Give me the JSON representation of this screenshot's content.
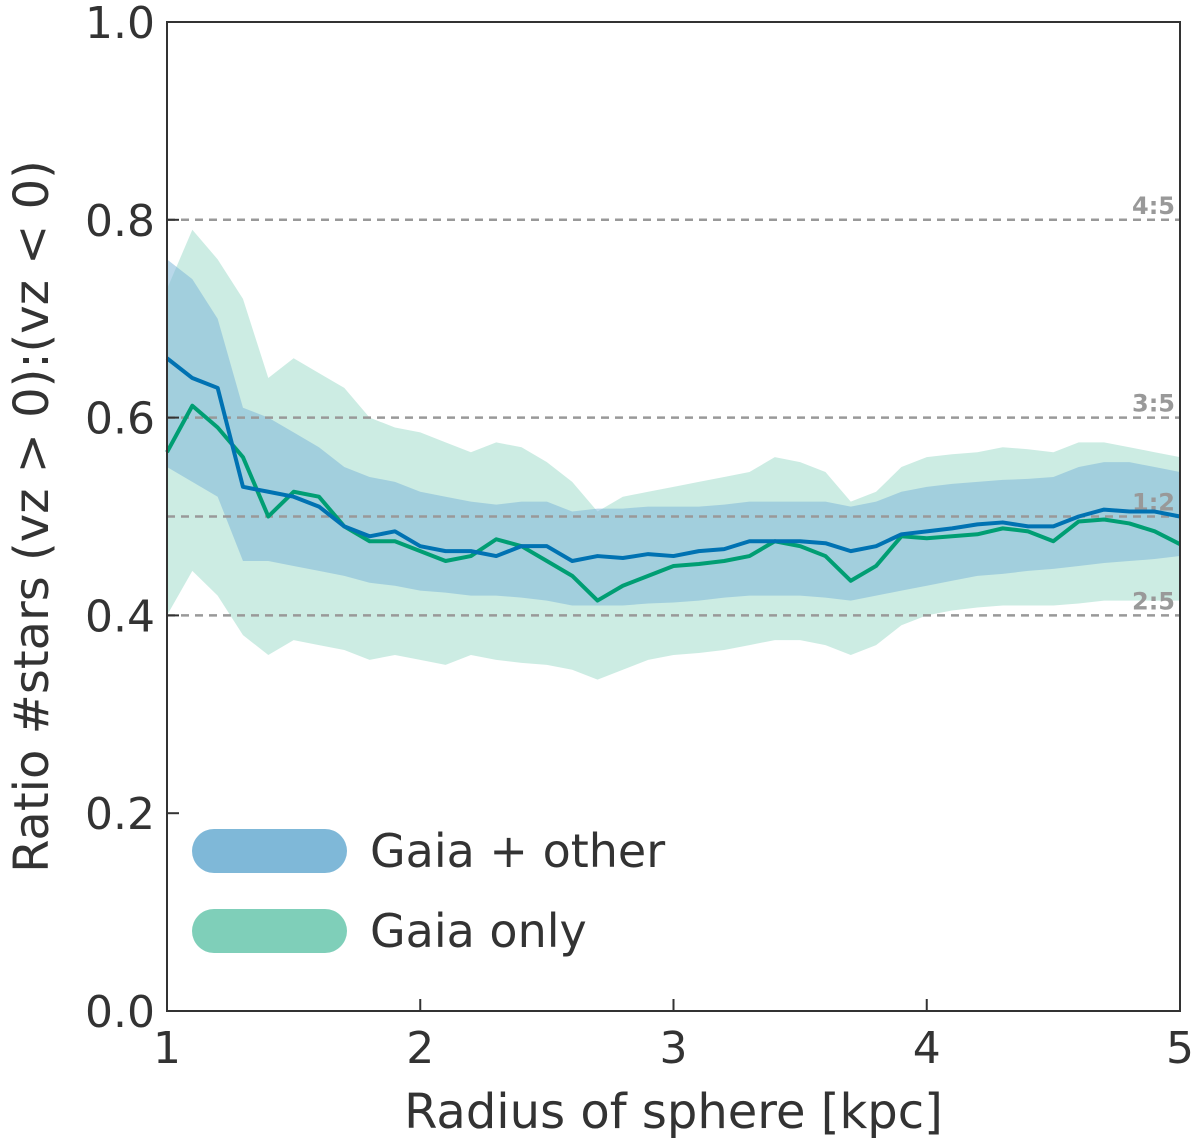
{
  "chart_data": {
    "type": "line",
    "title": "",
    "xlabel": "Radius of sphere [kpc]",
    "ylabel": "Ratio #stars (vz > 0):(vz < 0)",
    "xlim": [
      1,
      5
    ],
    "ylim": [
      0,
      1
    ],
    "xticks": [
      1,
      2,
      3,
      4,
      5
    ],
    "xtick_labels": [
      "1",
      "2",
      "3",
      "4",
      "5"
    ],
    "yticks": [
      0,
      0.2,
      0.4,
      0.6,
      0.8,
      1.0
    ],
    "ytick_labels": [
      "0.0",
      "0.2",
      "0.4",
      "0.6",
      "0.8",
      "1.0"
    ],
    "grid": false,
    "legend_position": "bottom-left",
    "reference_lines": [
      {
        "label": "4:5",
        "value": 0.8
      },
      {
        "label": "3:5",
        "value": 0.6
      },
      {
        "label": "1:2",
        "value": 0.5
      },
      {
        "label": "2:5",
        "value": 0.4
      }
    ],
    "colors": {
      "gaia_other_line": "#0072b2",
      "gaia_other_band": "#7fb8d8",
      "gaia_only_line": "#009e73",
      "gaia_only_band": "#7fcfb9",
      "ref_line": "#999999"
    },
    "x": [
      1.0,
      1.1,
      1.2,
      1.3,
      1.4,
      1.5,
      1.6,
      1.7,
      1.8,
      1.9,
      2.0,
      2.1,
      2.2,
      2.3,
      2.4,
      2.5,
      2.6,
      2.7,
      2.8,
      2.9,
      3.0,
      3.1,
      3.2,
      3.3,
      3.4,
      3.5,
      3.6,
      3.7,
      3.8,
      3.9,
      4.0,
      4.1,
      4.2,
      4.3,
      4.4,
      4.5,
      4.6,
      4.7,
      4.8,
      4.9,
      5.0
    ],
    "series": [
      {
        "name": "Gaia + other",
        "values": [
          0.66,
          0.64,
          0.63,
          0.53,
          0.525,
          0.52,
          0.51,
          0.49,
          0.48,
          0.485,
          0.47,
          0.465,
          0.465,
          0.46,
          0.47,
          0.47,
          0.455,
          0.46,
          0.458,
          0.462,
          0.46,
          0.465,
          0.467,
          0.475,
          0.475,
          0.475,
          0.473,
          0.465,
          0.47,
          0.482,
          0.485,
          0.488,
          0.492,
          0.494,
          0.49,
          0.49,
          0.5,
          0.507,
          0.505,
          0.505,
          0.5
        ],
        "band_low": [
          0.55,
          0.535,
          0.52,
          0.455,
          0.455,
          0.45,
          0.445,
          0.44,
          0.433,
          0.43,
          0.425,
          0.423,
          0.42,
          0.42,
          0.418,
          0.415,
          0.41,
          0.41,
          0.41,
          0.412,
          0.413,
          0.415,
          0.418,
          0.42,
          0.42,
          0.42,
          0.418,
          0.415,
          0.42,
          0.425,
          0.43,
          0.435,
          0.44,
          0.442,
          0.445,
          0.447,
          0.45,
          0.453,
          0.455,
          0.457,
          0.46
        ],
        "band_high": [
          0.76,
          0.74,
          0.7,
          0.61,
          0.6,
          0.585,
          0.57,
          0.55,
          0.54,
          0.535,
          0.525,
          0.52,
          0.515,
          0.512,
          0.515,
          0.515,
          0.505,
          0.508,
          0.508,
          0.51,
          0.51,
          0.51,
          0.512,
          0.515,
          0.515,
          0.515,
          0.515,
          0.51,
          0.515,
          0.525,
          0.53,
          0.533,
          0.535,
          0.537,
          0.538,
          0.54,
          0.55,
          0.555,
          0.555,
          0.55,
          0.545
        ]
      },
      {
        "name": "Gaia only",
        "values": [
          0.565,
          0.612,
          0.59,
          0.56,
          0.5,
          0.525,
          0.52,
          0.49,
          0.475,
          0.475,
          0.465,
          0.455,
          0.46,
          0.477,
          0.47,
          0.455,
          0.44,
          0.415,
          0.43,
          0.44,
          0.45,
          0.452,
          0.455,
          0.46,
          0.475,
          0.47,
          0.46,
          0.435,
          0.45,
          0.48,
          0.478,
          0.48,
          0.482,
          0.488,
          0.485,
          0.475,
          0.495,
          0.497,
          0.493,
          0.485,
          0.472
        ],
        "band_low": [
          0.4,
          0.445,
          0.42,
          0.38,
          0.36,
          0.375,
          0.37,
          0.365,
          0.355,
          0.36,
          0.355,
          0.35,
          0.36,
          0.355,
          0.352,
          0.35,
          0.345,
          0.335,
          0.345,
          0.355,
          0.36,
          0.362,
          0.365,
          0.37,
          0.375,
          0.375,
          0.37,
          0.36,
          0.37,
          0.39,
          0.4,
          0.405,
          0.408,
          0.41,
          0.41,
          0.41,
          0.412,
          0.415,
          0.415,
          0.415,
          0.415
        ],
        "band_high": [
          0.73,
          0.79,
          0.76,
          0.72,
          0.64,
          0.66,
          0.645,
          0.63,
          0.6,
          0.59,
          0.585,
          0.575,
          0.565,
          0.575,
          0.57,
          0.555,
          0.535,
          0.505,
          0.52,
          0.525,
          0.53,
          0.535,
          0.54,
          0.545,
          0.56,
          0.555,
          0.545,
          0.515,
          0.525,
          0.55,
          0.56,
          0.563,
          0.565,
          0.57,
          0.568,
          0.565,
          0.575,
          0.575,
          0.57,
          0.565,
          0.56
        ]
      }
    ]
  }
}
